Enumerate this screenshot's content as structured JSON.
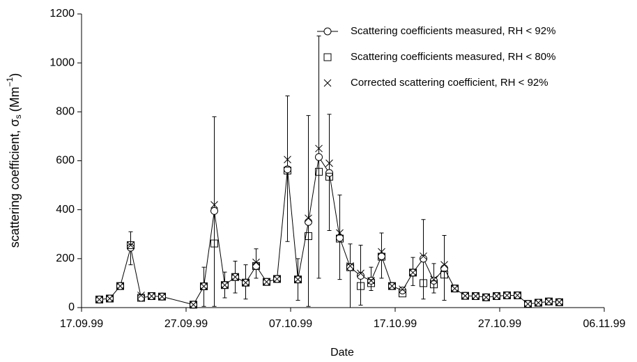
{
  "chart_data": {
    "type": "scatter",
    "x_label": "Date",
    "y_label": {
      "main": "scattering coefficient, σ",
      "sub": "s",
      "unit": "(Mm",
      "sup": "−1",
      "close": ")"
    },
    "xlim": [
      0,
      50
    ],
    "xticks": [
      {
        "value": 0,
        "label": "17.09.99"
      },
      {
        "value": 10,
        "label": "27.09.99"
      },
      {
        "value": 20,
        "label": "07.10.99"
      },
      {
        "value": 30,
        "label": "17.10.99"
      },
      {
        "value": 40,
        "label": "27.10.99"
      },
      {
        "value": 50,
        "label": "06.11.99"
      }
    ],
    "ylim": [
      0,
      1200
    ],
    "yticks": [
      0,
      200,
      400,
      600,
      800,
      1000,
      1200
    ],
    "legend": "top-right",
    "x": [
      1.7,
      2.7,
      3.7,
      4.7,
      5.7,
      6.7,
      7.7,
      10.7,
      11.7,
      12.7,
      13.7,
      14.7,
      15.7,
      16.7,
      17.7,
      18.7,
      19.7,
      20.7,
      21.7,
      22.7,
      23.7,
      24.7,
      25.7,
      26.7,
      27.7,
      28.7,
      29.7,
      30.7,
      31.7,
      32.7,
      33.7,
      34.7,
      35.7,
      36.7,
      37.7,
      38.7,
      39.7,
      40.7,
      41.7,
      42.7,
      43.7,
      44.7,
      45.7
    ],
    "series": [
      {
        "name": "Scattering coefficients measured, RH < 92%",
        "marker": "circle",
        "line": true,
        "color": "#000000",
        "values": [
          33,
          37,
          88,
          245,
          40,
          47,
          45,
          12,
          87,
          395,
          92,
          125,
          102,
          170,
          105,
          117,
          565,
          115,
          350,
          615,
          550,
          285,
          165,
          130,
          110,
          210,
          88,
          70,
          143,
          200,
          110,
          160,
          78,
          48,
          47,
          42,
          47,
          50,
          50,
          15,
          20,
          25,
          22
        ],
        "error_low": [
          null,
          null,
          null,
          175,
          null,
          null,
          null,
          null,
          5,
          5,
          40,
          60,
          35,
          120,
          null,
          null,
          270,
          30,
          5,
          120,
          315,
          115,
          0,
          10,
          70,
          120,
          null,
          null,
          90,
          35,
          60,
          30,
          null,
          null,
          null,
          null,
          null,
          null,
          null,
          null,
          null,
          null,
          null
        ],
        "error_high": [
          null,
          null,
          null,
          310,
          null,
          null,
          null,
          null,
          165,
          780,
          145,
          190,
          175,
          240,
          null,
          null,
          865,
          200,
          785,
          1110,
          790,
          460,
          260,
          255,
          165,
          305,
          null,
          null,
          205,
          360,
          180,
          295,
          null,
          null,
          null,
          null,
          null,
          null,
          null,
          null,
          null,
          null,
          null
        ]
      },
      {
        "name": "Scattering coefficients measured, RH < 80%",
        "marker": "square",
        "line": false,
        "color": "#000000",
        "values": [
          33,
          37,
          88,
          255,
          40,
          47,
          45,
          12,
          87,
          262,
          92,
          125,
          102,
          170,
          105,
          117,
          560,
          115,
          292,
          555,
          535,
          282,
          165,
          88,
          100,
          208,
          88,
          58,
          143,
          100,
          95,
          135,
          78,
          48,
          47,
          42,
          47,
          50,
          50,
          15,
          20,
          25,
          22
        ]
      },
      {
        "name": "Corrected scattering coefficient, RH < 92%",
        "marker": "cross",
        "line": false,
        "color": "#000000",
        "values": [
          33,
          37,
          88,
          255,
          50,
          47,
          45,
          12,
          87,
          420,
          92,
          125,
          102,
          185,
          105,
          117,
          605,
          115,
          365,
          650,
          590,
          305,
          170,
          140,
          110,
          228,
          88,
          75,
          143,
          210,
          115,
          175,
          78,
          48,
          47,
          42,
          47,
          50,
          50,
          15,
          20,
          25,
          22
        ]
      }
    ]
  }
}
